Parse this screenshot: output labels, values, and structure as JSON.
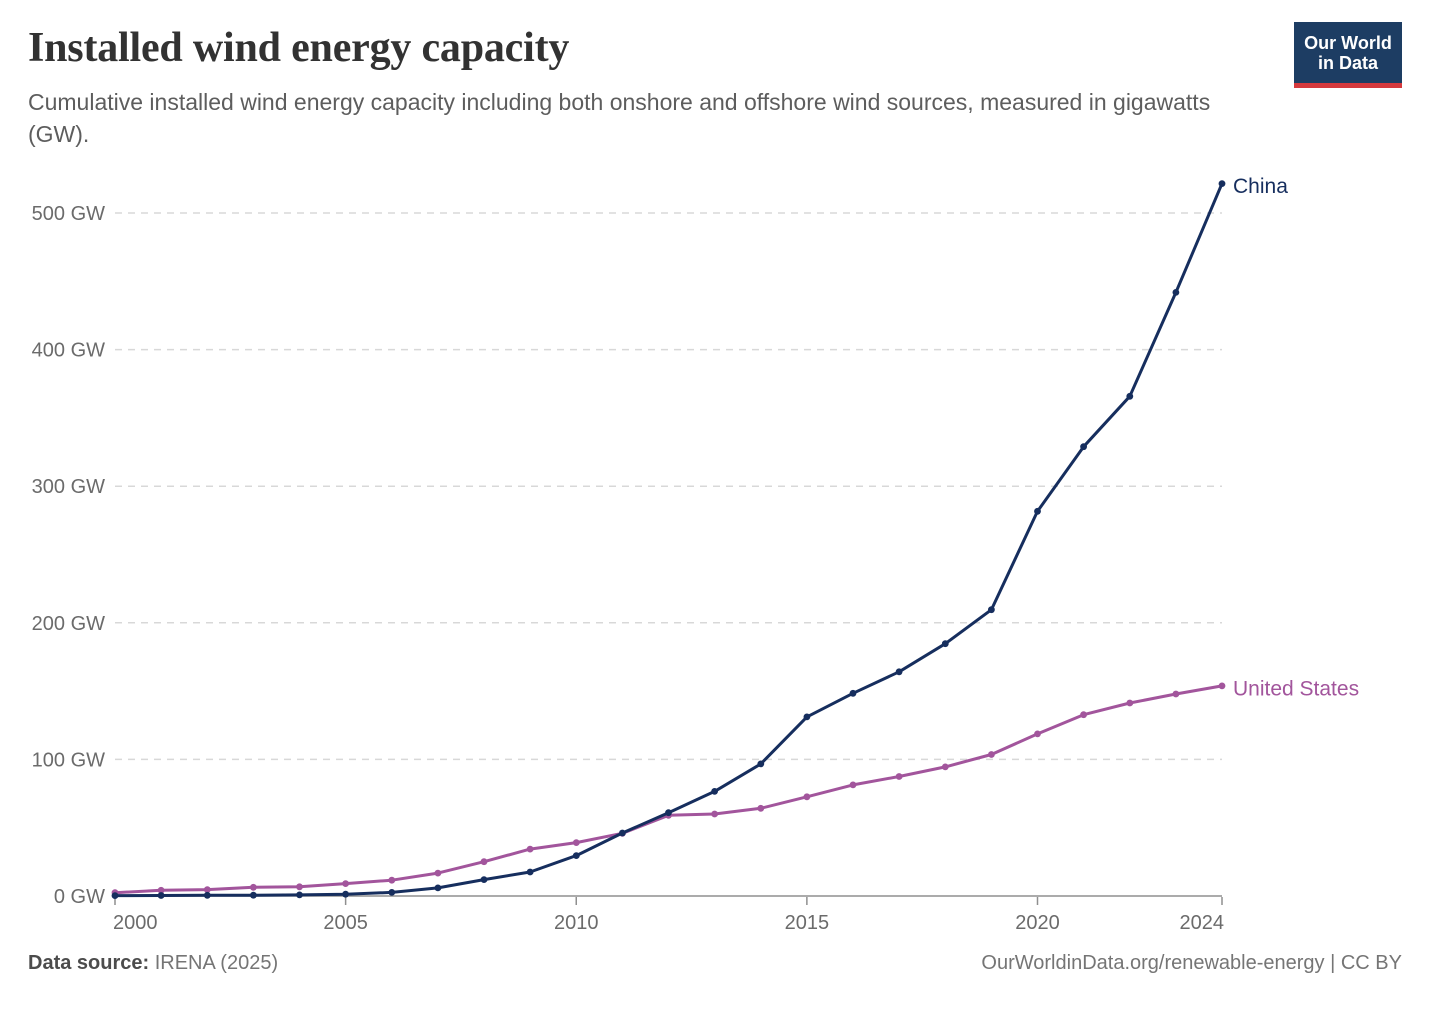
{
  "header": {
    "title": "Installed wind energy capacity",
    "subtitle": "Cumulative installed wind energy capacity including both onshore and offshore wind sources, measured in gigawatts (GW).",
    "logo_line1": "Our World",
    "logo_line2": "in Data"
  },
  "chart_data": {
    "type": "line",
    "title": "Installed wind energy capacity",
    "unit": "GW",
    "x": [
      2000,
      2001,
      2002,
      2003,
      2004,
      2005,
      2006,
      2007,
      2008,
      2009,
      2010,
      2011,
      2012,
      2013,
      2014,
      2015,
      2016,
      2017,
      2018,
      2019,
      2020,
      2021,
      2022,
      2023,
      2024
    ],
    "series": [
      {
        "name": "China",
        "color": "#162e5e",
        "values": [
          0.3,
          0.4,
          0.5,
          0.6,
          0.8,
          1.3,
          2.6,
          5.9,
          12.0,
          17.6,
          29.6,
          46.1,
          61.0,
          76.6,
          96.7,
          131.1,
          148.4,
          164.1,
          184.7,
          209.6,
          281.6,
          328.9,
          365.8,
          441.9,
          521.5
        ]
      },
      {
        "name": "United States",
        "color": "#a2559c",
        "values": [
          2.4,
          4.2,
          4.7,
          6.4,
          6.7,
          9.1,
          11.6,
          16.8,
          25.1,
          34.3,
          39.1,
          45.9,
          59.1,
          60.0,
          64.2,
          72.6,
          81.3,
          87.5,
          94.5,
          103.6,
          118.7,
          132.7,
          141.3,
          147.9,
          153.8
        ]
      }
    ],
    "x_ticks": [
      2000,
      2005,
      2010,
      2015,
      2020,
      2024
    ],
    "y_ticks": [
      0,
      100,
      200,
      300,
      400,
      500
    ],
    "y_tick_suffix": " GW",
    "ylim": [
      0,
      500
    ],
    "xlim": [
      2000,
      2024
    ],
    "grid": "horizontal-dashed",
    "legend_position": "end-of-line-labels"
  },
  "footer": {
    "source_label": "Data source:",
    "source_value": "IRENA (2025)",
    "url_text": "OurWorldinData.org/renewable-energy | CC BY"
  },
  "colors": {
    "china_line": "#162e5e",
    "us_line": "#a2559c",
    "gridline": "#d8d8d8",
    "axis_line": "#8f8f8f",
    "tick_text": "#6b6b6b",
    "logo_bg": "#1d3d63",
    "logo_accent": "#d5393d"
  }
}
